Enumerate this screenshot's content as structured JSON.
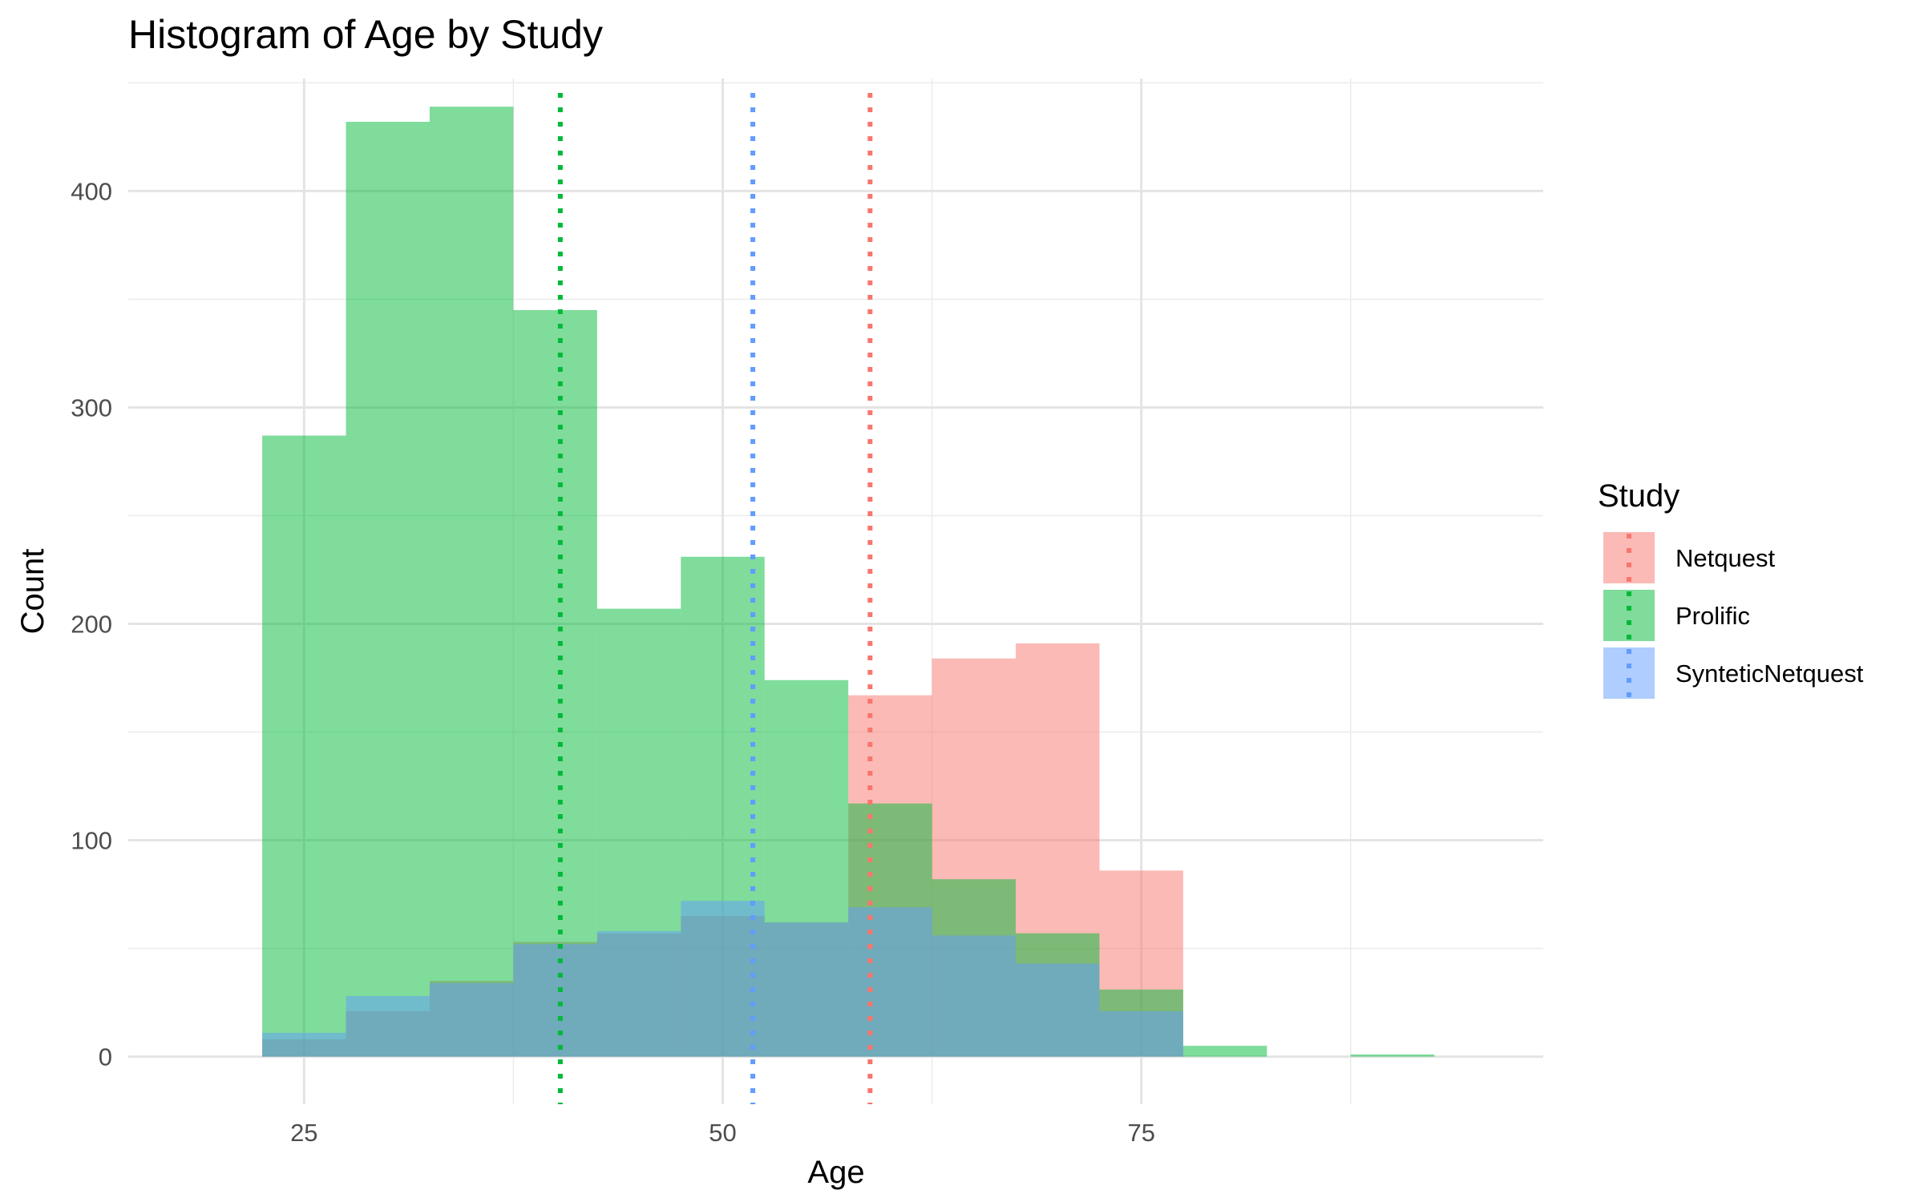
{
  "chart_data": {
    "type": "histogram",
    "title": "Histogram of Age by Study",
    "xlabel": "Age",
    "ylabel": "Count",
    "xlim": [
      14.5,
      99
    ],
    "ylim": [
      -22,
      452
    ],
    "x_ticks": [
      25,
      50,
      75
    ],
    "y_ticks": [
      0,
      100,
      200,
      300,
      400
    ],
    "grid": true,
    "bin_width": 5,
    "bin_starts": [
      22.5,
      27.5,
      32.5,
      37.5,
      42.5,
      47.5,
      52.5,
      57.5,
      62.5,
      67.5,
      72.5,
      77.5,
      82.5,
      87.5
    ],
    "legend": {
      "title": "Study",
      "position": "right"
    },
    "series": [
      {
        "name": "Netquest",
        "color": "#F8766D",
        "mean": 58.8,
        "values": [
          8,
          21,
          35,
          53,
          57,
          65,
          62,
          167,
          184,
          191,
          86,
          0,
          0,
          0
        ]
      },
      {
        "name": "Prolific",
        "color": "#00BA38",
        "mean": 40.3,
        "values": [
          287,
          432,
          439,
          345,
          207,
          231,
          174,
          117,
          82,
          57,
          31,
          5,
          0,
          1
        ]
      },
      {
        "name": "SynteticNetquest",
        "color": "#619CFF",
        "mean": 51.8,
        "values": [
          11,
          28,
          34,
          52,
          58,
          72,
          62,
          69,
          56,
          43,
          21,
          0,
          0,
          0
        ]
      }
    ]
  }
}
